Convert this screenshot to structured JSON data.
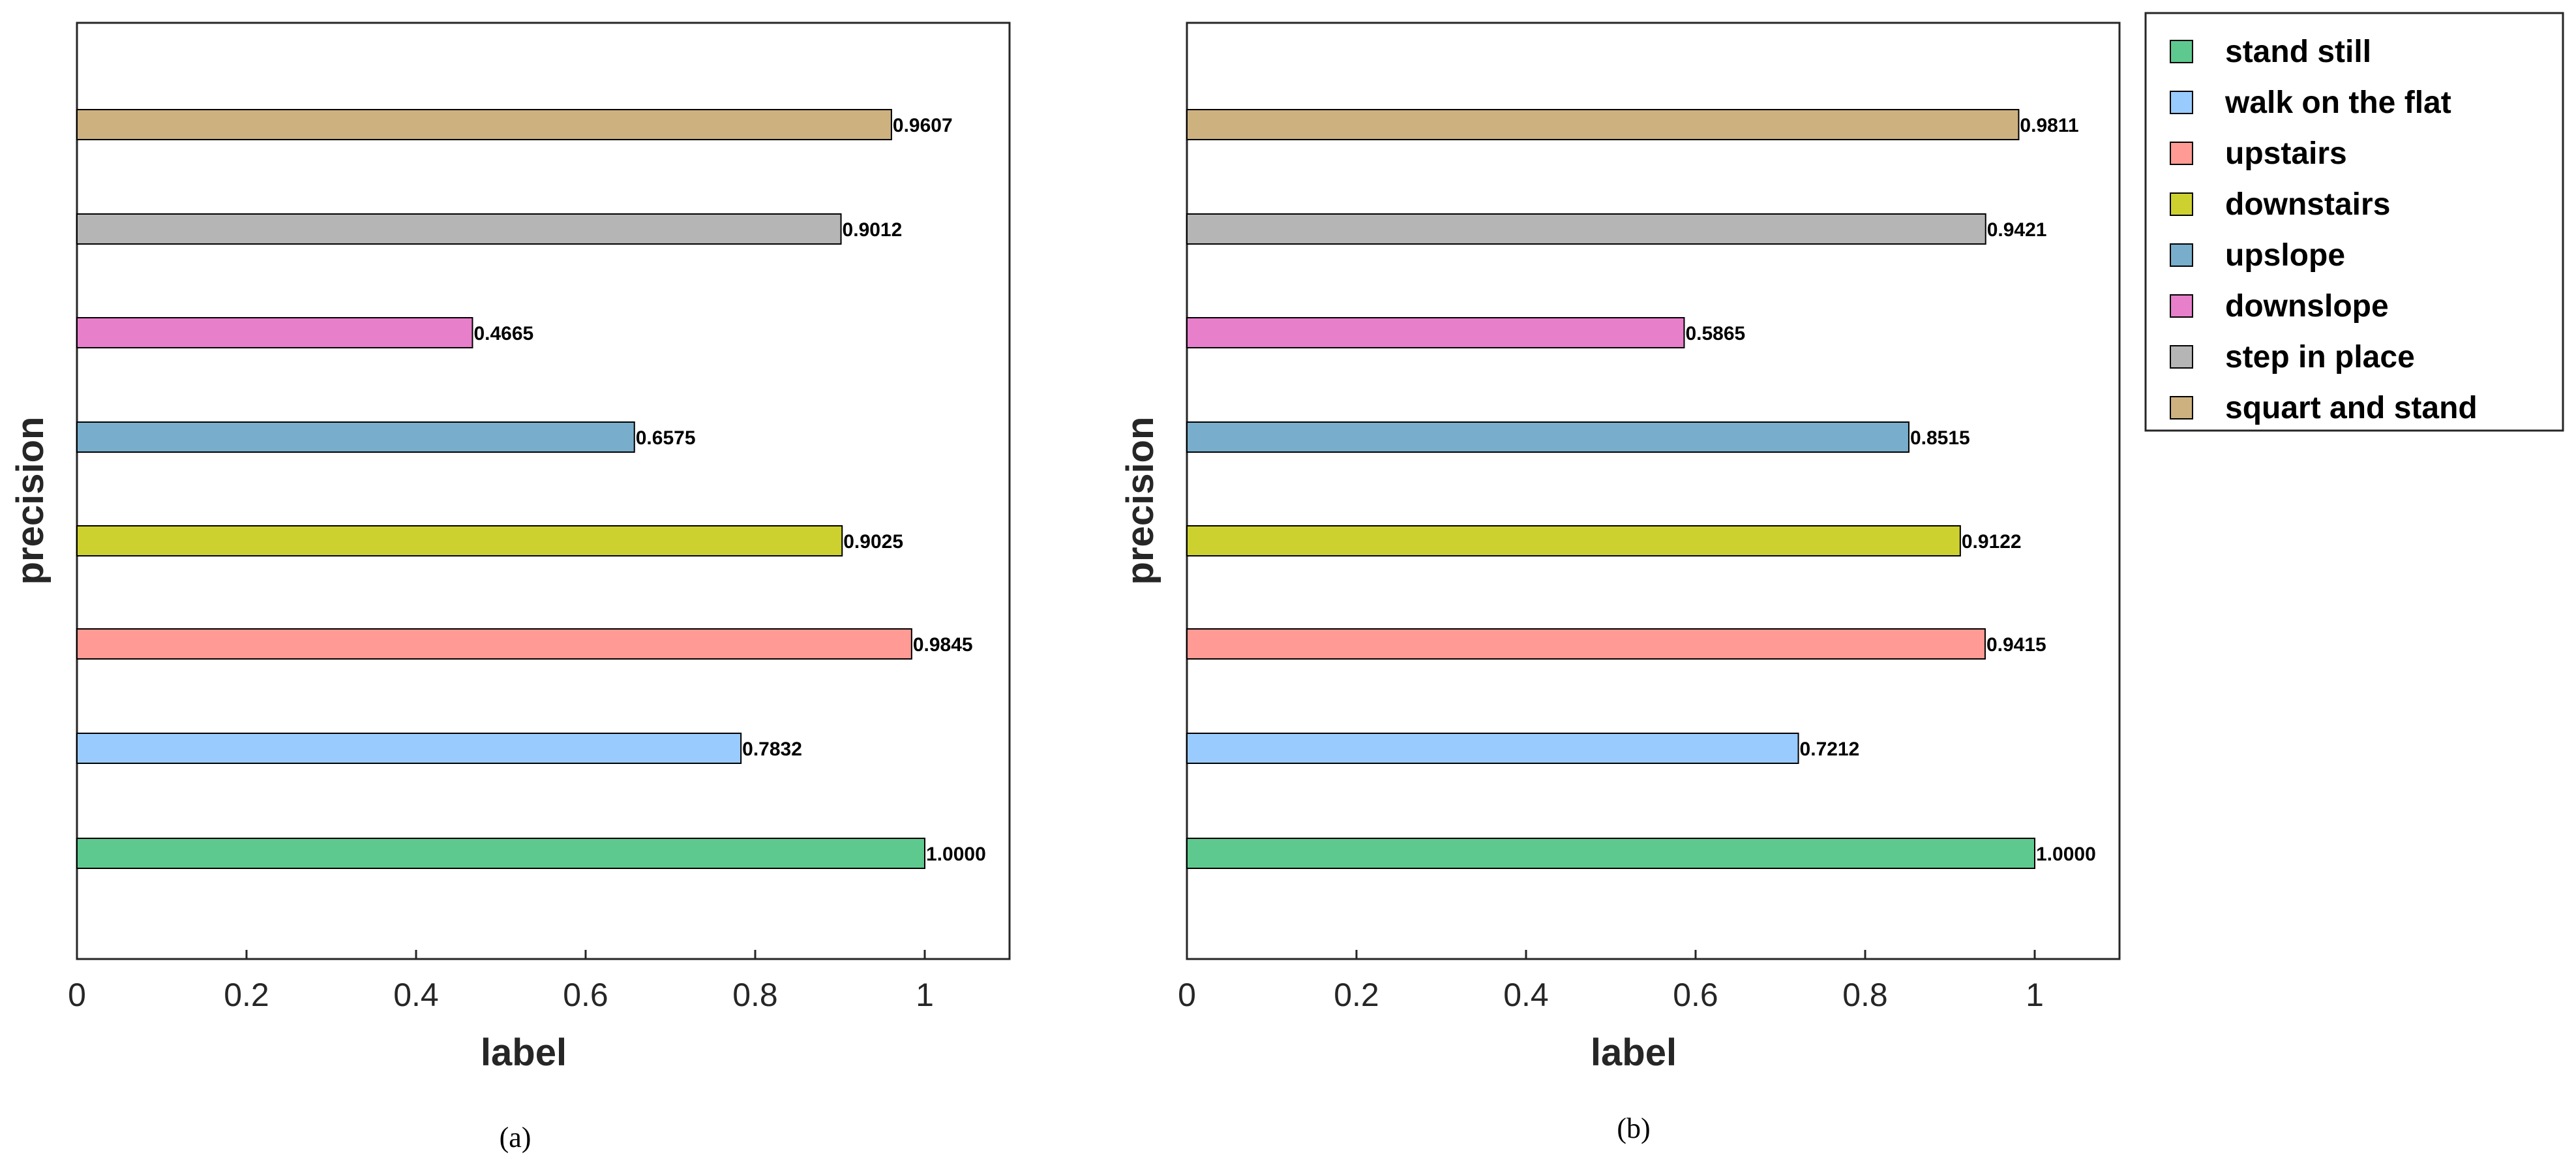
{
  "chart_data": [
    {
      "type": "bar",
      "orientation": "horizontal",
      "panel": "a",
      "caption": "(a)",
      "xlabel": "label",
      "ylabel": "precision",
      "xlim": [
        0,
        1.1
      ],
      "xticks": [
        "0",
        "0.2",
        "0.4",
        "0.6",
        "0.8",
        "1"
      ],
      "categories": [
        "stand still",
        "walk on the flat",
        "upstairs",
        "downstairs",
        "upslope",
        "downslope",
        "step in place",
        "squart and stand"
      ],
      "values": [
        1.0,
        0.7832,
        0.9845,
        0.9025,
        0.6575,
        0.4665,
        0.9012,
        0.9607
      ],
      "value_labels": [
        "1.0000",
        "0.7832",
        "0.9845",
        "0.9025",
        "0.6575",
        "0.4665",
        "0.9012",
        "0.9607"
      ]
    },
    {
      "type": "bar",
      "orientation": "horizontal",
      "panel": "b",
      "caption": "(b)",
      "xlabel": "label",
      "ylabel": "precision",
      "xlim": [
        0,
        1.1
      ],
      "xticks": [
        "0",
        "0.2",
        "0.4",
        "0.6",
        "0.8",
        "1"
      ],
      "categories": [
        "stand still",
        "walk on the flat",
        "upstairs",
        "downstairs",
        "upslope",
        "downslope",
        "step in place",
        "squart and stand"
      ],
      "values": [
        1.0,
        0.7212,
        0.9415,
        0.9122,
        0.8515,
        0.5865,
        0.9421,
        0.9811
      ],
      "value_labels": [
        "1.0000",
        "0.7212",
        "0.9415",
        "0.9122",
        "0.8515",
        "0.5865",
        "0.9421",
        "0.9811"
      ]
    }
  ],
  "legend": {
    "placement": "right",
    "entries": [
      {
        "label": "stand still",
        "color": "#5ec98f"
      },
      {
        "label": "walk on the flat",
        "color": "#9acbff"
      },
      {
        "label": "upstairs",
        "color": "#ff9a94"
      },
      {
        "label": "downstairs",
        "color": "#cdd130"
      },
      {
        "label": "upslope",
        "color": "#78aecb"
      },
      {
        "label": "downslope",
        "color": "#e77fcb"
      },
      {
        "label": "step in place",
        "color": "#b5b5b5"
      },
      {
        "label": "squart and stand",
        "color": "#cdb17f"
      }
    ]
  }
}
